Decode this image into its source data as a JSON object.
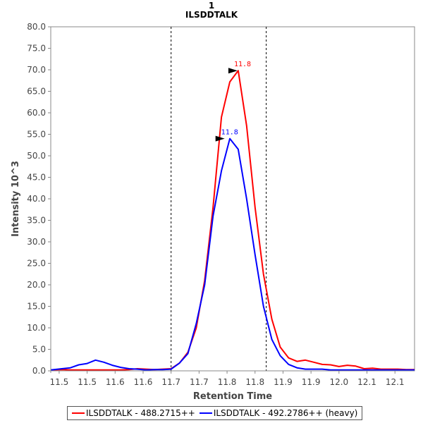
{
  "chart_data": {
    "type": "line",
    "title": "1",
    "subtitle": "ILSDDTALK",
    "xlabel": "Retention Time",
    "ylabel": "Intensity 10^3",
    "xlim": [
      11.485,
      12.135
    ],
    "ylim": [
      0,
      80
    ],
    "x_tick_values": [
      11.5,
      11.55,
      11.6,
      11.65,
      11.7,
      11.75,
      11.8,
      11.85,
      11.9,
      11.95,
      12.0,
      12.05,
      12.1
    ],
    "x_tick_labels": [
      "11.5",
      "11.5",
      "11.6",
      "11.6",
      "11.7",
      "11.7",
      "11.8",
      "11.8",
      "11.9",
      "11.9",
      "12.0",
      "12.1",
      "12.1"
    ],
    "y_ticks": [
      "0.0",
      "5.0",
      "10.0",
      "15.0",
      "20.0",
      "25.0",
      "30.0",
      "35.0",
      "40.0",
      "45.0",
      "50.0",
      "55.0",
      "60.0",
      "65.0",
      "70.0",
      "75.0",
      "80.0"
    ],
    "vertical_lines": [
      11.7,
      11.87
    ],
    "series": [
      {
        "name": "ILSDDTALK - 488.2715++",
        "color": "#ff0000",
        "x": [
          11.485,
          11.505,
          11.52,
          11.535,
          11.55,
          11.565,
          11.58,
          11.595,
          11.61,
          11.625,
          11.64,
          11.655,
          11.67,
          11.685,
          11.7,
          11.715,
          11.73,
          11.745,
          11.76,
          11.775,
          11.79,
          11.805,
          11.82,
          11.835,
          11.85,
          11.865,
          11.88,
          11.895,
          11.91,
          11.925,
          11.94,
          11.955,
          11.97,
          11.985,
          12.0,
          12.015,
          12.03,
          12.045,
          12.06,
          12.075,
          12.09,
          12.105,
          12.12,
          12.135
        ],
        "y": [
          0.2,
          0.3,
          0.2,
          0.2,
          0.2,
          0.2,
          0.2,
          0.2,
          0.2,
          0.3,
          0.5,
          0.4,
          0.3,
          0.4,
          0.5,
          1.8,
          4.3,
          10.0,
          21.0,
          38.0,
          59.0,
          67.2,
          69.8,
          57.0,
          38.0,
          22.5,
          12.0,
          5.5,
          3.0,
          2.2,
          2.5,
          2.0,
          1.5,
          1.4,
          1.0,
          1.3,
          1.1,
          0.5,
          0.6,
          0.4,
          0.4,
          0.4,
          0.3,
          0.3
        ],
        "peak": {
          "x": 11.82,
          "y": 69.8,
          "label": "11.8"
        }
      },
      {
        "name": "ILSDDTALK - 492.2786++ (heavy)",
        "color": "#0000ff",
        "x": [
          11.485,
          11.505,
          11.52,
          11.535,
          11.55,
          11.565,
          11.58,
          11.595,
          11.61,
          11.625,
          11.64,
          11.655,
          11.67,
          11.685,
          11.7,
          11.715,
          11.73,
          11.745,
          11.76,
          11.775,
          11.79,
          11.805,
          11.82,
          11.835,
          11.85,
          11.865,
          11.88,
          11.895,
          11.91,
          11.925,
          11.94,
          11.955,
          11.97,
          11.985,
          12.0,
          12.015,
          12.03,
          12.045,
          12.06,
          12.075,
          12.09,
          12.105,
          12.12,
          12.135
        ],
        "y": [
          0.2,
          0.5,
          0.7,
          1.4,
          1.7,
          2.5,
          2.0,
          1.3,
          0.8,
          0.5,
          0.4,
          0.2,
          0.3,
          0.3,
          0.4,
          1.8,
          4.0,
          11.0,
          20.0,
          36.0,
          46.5,
          54.0,
          51.5,
          40.0,
          27.0,
          15.0,
          7.3,
          3.5,
          1.5,
          0.7,
          0.4,
          0.4,
          0.4,
          0.2,
          0.2,
          0.2,
          0.2,
          0.2,
          0.2,
          0.2,
          0.2,
          0.2,
          0.2,
          0.2
        ],
        "peak": {
          "x": 11.797,
          "y": 54.0,
          "label": "11.8"
        }
      }
    ],
    "legend_position": "bottom"
  }
}
